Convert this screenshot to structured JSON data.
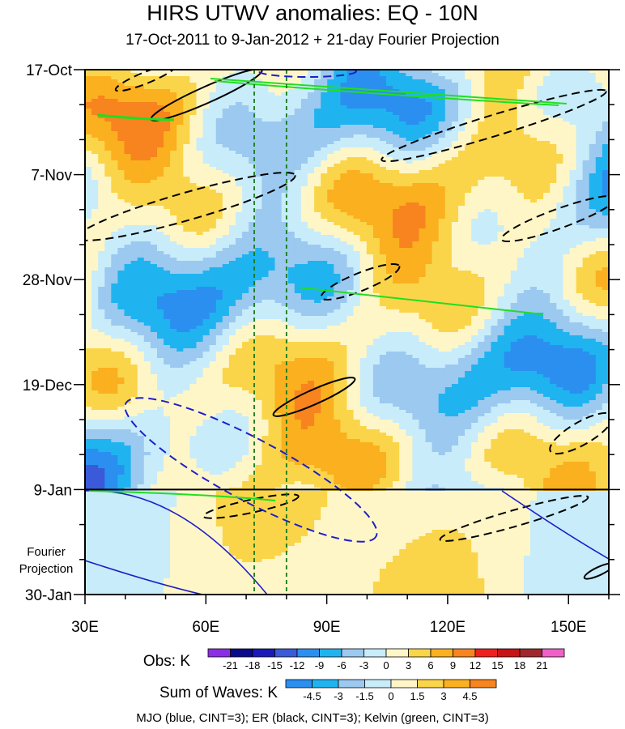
{
  "chart_data": {
    "type": "heatmap",
    "title": "HIRS UTWV anomalies: EQ - 10N",
    "subtitle": "17-Oct-2011 to 9-Jan-2012 + 21-day Fourier Projection",
    "x_ticks": [
      {
        "label": "30E",
        "value": 30
      },
      {
        "label": "60E",
        "value": 60
      },
      {
        "label": "90E",
        "value": 90
      },
      {
        "label": "120E",
        "value": 120
      },
      {
        "label": "150E",
        "value": 150
      }
    ],
    "x_range": [
      30,
      160
    ],
    "y_ticks": [
      {
        "label": "17-Oct",
        "day": 0
      },
      {
        "label": "7-Nov",
        "day": 21
      },
      {
        "label": "28-Nov",
        "day": 42
      },
      {
        "label": "19-Dec",
        "day": 63
      },
      {
        "label": "9-Jan",
        "day": 84
      },
      {
        "label": "30-Jan",
        "day": 105
      }
    ],
    "y_range_days": [
      0,
      105
    ],
    "projection_start_day": 84,
    "projection_label": [
      "Fourier",
      "Projection"
    ],
    "reference_lines_lon": [
      72,
      80
    ],
    "obs_legend": {
      "label": "Obs: K",
      "levels": [
        "-21",
        "-18",
        "-15",
        "-12",
        "-9",
        "-6",
        "-3",
        "0",
        "3",
        "6",
        "9",
        "12",
        "15",
        "18",
        "21"
      ],
      "colors": [
        "#8c2ee6",
        "#0a0a8c",
        "#1a1ab8",
        "#3a5ad9",
        "#2b8ff0",
        "#1fb4f0",
        "#9cc9f0",
        "#c8ecfa",
        "#fff6c8",
        "#fad54a",
        "#fbb01f",
        "#f7841f",
        "#f02020",
        "#c81414",
        "#a0282c",
        "#f060c8"
      ]
    },
    "waves_legend": {
      "label": "Sum of Waves: K",
      "levels": [
        "-4.5",
        "-3",
        "-1.5",
        "0",
        "1.5",
        "3",
        "4.5"
      ],
      "colors": [
        "#2b8ff0",
        "#1fb4f0",
        "#9cc9f0",
        "#c8ecfa",
        "#fff6c8",
        "#fad54a",
        "#fbb01f",
        "#f7841f"
      ]
    },
    "contours": {
      "mjo": {
        "name": "MJO",
        "color": "#1f1fc8",
        "cint": 3
      },
      "er": {
        "name": "ER",
        "color": "#000000",
        "cint": 3
      },
      "kelvin": {
        "name": "Kelvin",
        "color": "#22dd22",
        "cint": 3
      }
    },
    "legend_caption": "MJO (blue, CINT=3); ER (black, CINT=3); Kelvin (green, CINT=3)"
  }
}
